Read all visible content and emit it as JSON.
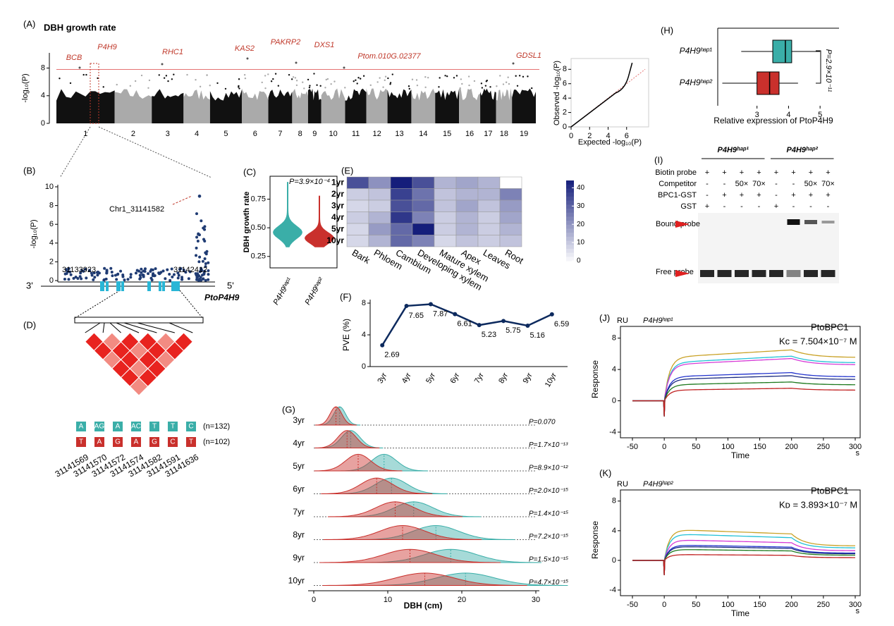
{
  "panel_a": {
    "label": "(A)",
    "title": "DBH  growth rate",
    "y_label": "-log₁₀(P)",
    "ylim": [
      0,
      10.2
    ],
    "yticks": [
      0,
      4,
      8
    ],
    "threshold": 7.8,
    "chromosomes": [
      "1",
      "2",
      "3",
      "4",
      "5",
      "6",
      "7",
      "8",
      "9",
      "10",
      "11",
      "12",
      "13",
      "14",
      "15",
      "16",
      "17",
      "18",
      "19"
    ],
    "genes": [
      "BCB",
      "P4H9",
      "RHC1",
      "KAS2",
      "PAKRP2",
      "DXS1",
      "Ptom.010G.02377",
      "GDSL1"
    ]
  },
  "qq": {
    "type": "qq",
    "x_label": "Expected -log₁₀(P)",
    "y_label": "Observed -log₁₀(P)",
    "xlim": [
      0,
      8
    ],
    "xticks": [
      0,
      2,
      4,
      6
    ],
    "ylim": [
      0,
      9.5
    ],
    "yticks": [
      0,
      2,
      4,
      6,
      8
    ]
  },
  "panel_b": {
    "label": "(B)",
    "y_label": "-log₁₀(P)",
    "ylim": [
      0,
      10
    ],
    "yticks": [
      0,
      2,
      4,
      6,
      8,
      10
    ],
    "snp": "Chr1_31141582",
    "x_start": 31133923,
    "x_end": 31142412,
    "gene": "PtoP4H9",
    "end_left": "3'",
    "end_right": "5'"
  },
  "panel_c": {
    "type": "violin",
    "label": "(C)",
    "y_label": "DBH growth rate",
    "p_value": "P=3.9×10⁻⁴",
    "ylim": [
      0.15,
      0.95
    ],
    "yticks": [
      0.25,
      {
        "value": 0.5,
        "label": "0.50"
      },
      0.75
    ],
    "groups": [
      "P4H9ʰᵃᵖ¹",
      "P4H9ʰᵃᵖ²"
    ],
    "colors": [
      "#3aaea8",
      "#c9302c"
    ]
  },
  "panel_d": {
    "label": "(D)",
    "haplotypes": [
      {
        "alleles": [
          "A",
          "AG",
          "A",
          "AC",
          "T",
          "T",
          "C"
        ],
        "n": "(n=132)",
        "color": "#3aaea8"
      },
      {
        "alleles": [
          "T",
          "A",
          "G",
          "A",
          "G",
          "C",
          "T"
        ],
        "n": "(n=102)",
        "color": "#c9302c"
      }
    ],
    "positions": [
      31141569,
      31141570,
      31141572,
      31141574,
      31141582,
      31141591,
      31141636
    ]
  },
  "panel_e": {
    "type": "heatmap",
    "label": "(E)",
    "rows": [
      "1yr",
      "2yr",
      "3yr",
      "4yr",
      "5yr",
      "10yr"
    ],
    "columns": [
      "Bark",
      "Phloem",
      "Cambium",
      "Developing xylem",
      "Mature xylem",
      "Apex",
      "Leaves",
      "Root"
    ],
    "values": [
      [
        35,
        22,
        45,
        35,
        15,
        18,
        15,
        0
      ],
      [
        10,
        12,
        38,
        28,
        12,
        15,
        15,
        25
      ],
      [
        8,
        10,
        35,
        30,
        12,
        18,
        12,
        20
      ],
      [
        10,
        15,
        40,
        25,
        10,
        15,
        10,
        18
      ],
      [
        8,
        20,
        30,
        45,
        10,
        15,
        10,
        15
      ],
      [
        8,
        15,
        30,
        25,
        8,
        12,
        10,
        12
      ]
    ],
    "color": "#1a237e",
    "colorbar_lim": [
      0,
      44
    ],
    "colorbar_ticks": [
      0,
      10,
      20,
      30,
      40
    ]
  },
  "panel_f": {
    "type": "line",
    "label": "(F)",
    "y_label": "PVE (%)",
    "categories": [
      "3yr",
      "4yr",
      "5yr",
      "6yr",
      "7yr",
      "8yr",
      "9yr",
      "10yr"
    ],
    "values": [
      2.69,
      7.65,
      7.87,
      6.61,
      5.23,
      5.75,
      5.16,
      6.59
    ],
    "color": "#0d2a5e",
    "ylim": [
      0,
      8
    ],
    "yticks": [
      0,
      4,
      8
    ]
  },
  "panel_g": {
    "type": "ridgeline",
    "label": "(G)",
    "x_label": "DBH (cm)",
    "xlim": [
      0,
      30
    ],
    "xticks": [
      0,
      10,
      20,
      30
    ],
    "rows": [
      "3yr",
      "4yr",
      "5yr",
      "6yr",
      "7yr",
      "8yr",
      "9yr",
      "10yr"
    ],
    "p_values": [
      "P=0.070",
      "P=1.7×10⁻¹³",
      "P=8.9×10⁻¹²",
      "P=2.0×10⁻¹⁵",
      "P=1.4×10⁻¹⁵",
      "P=7.2×10⁻¹⁵",
      "P=1.5×10⁻¹⁵",
      "P=4.7×10⁻¹⁵"
    ],
    "peaks_hap1": [
      3.5,
      5,
      9.5,
      10.5,
      13.5,
      16.5,
      18.5,
      20.5
    ],
    "peaks_hap2": [
      3,
      4.5,
      6,
      8.5,
      11,
      12,
      13,
      15
    ],
    "colors": [
      "#3aaea8",
      "#c9302c"
    ]
  },
  "panel_h": {
    "type": "box",
    "label": "(H)",
    "x_label": "Relative expression of PtoP4H9",
    "p_value": "P=2.9×10⁻¹¹",
    "xlim": [
      1.8,
      5.6
    ],
    "xticks": [
      3,
      4,
      5
    ],
    "groups": [
      "P4H9ʰᵃᵖ¹",
      "P4H9ʰᵃᵖ²"
    ],
    "colors": [
      "#3aaea8",
      "#c9302c"
    ],
    "whisker_low": [
      2.5,
      1.9
    ],
    "q1": [
      3.5,
      3.0
    ],
    "median": [
      3.9,
      3.4
    ],
    "q3": [
      4.1,
      3.7
    ],
    "whisker_high": [
      5.0,
      4.3
    ]
  },
  "panel_i": {
    "label": "(I)",
    "groups": [
      "P4H9ʰᵃᵖ¹",
      "P4H9ʰᵃᵖ²"
    ],
    "rows": [
      {
        "label": "Biotin probe",
        "cells": [
          "+",
          "+",
          "+",
          "+",
          "+",
          "+",
          "+",
          "+"
        ]
      },
      {
        "label": "Competitor",
        "cells": [
          "-",
          "-",
          "50×",
          "70×",
          "-",
          "-",
          "50×",
          "70×"
        ]
      },
      {
        "label": "BPC1-GST",
        "cells": [
          "-",
          "+",
          "+",
          "+",
          "-",
          "+",
          "+",
          "+"
        ]
      },
      {
        "label": "GST",
        "cells": [
          "+",
          "-",
          "-",
          "-",
          "+",
          "-",
          "-",
          "-"
        ]
      }
    ],
    "bound": "Bound probe",
    "free": "Free probe"
  },
  "panel_j": {
    "type": "spr",
    "label": "(J)",
    "unit": "RU",
    "group": "P4H9ʰᵃᵖ¹",
    "analyte": "PtoBPC1",
    "constant": "Kᴄ = 7.504×10⁻⁷ M",
    "y_label": "Response",
    "x_label": "Time",
    "x_unit": "s",
    "xlim": [
      -50,
      300
    ],
    "xticks": [
      -50,
      0,
      50,
      100,
      150,
      200,
      250,
      300
    ],
    "ylim": [
      -4,
      9.5
    ],
    "yticks": [
      -4,
      0,
      4,
      8
    ],
    "plateaus": [
      6.5,
      5.7,
      5.4,
      3.6,
      3.2,
      2.4,
      1.6
    ],
    "colors": [
      "#c9a227",
      "#22c1d6",
      "#d63ad6",
      "#2233cc",
      "#1a2a80",
      "#1e7a1e",
      "#c02020"
    ]
  },
  "panel_k": {
    "type": "spr",
    "label": "(K)",
    "unit": "RU",
    "group": "P4H9ʰᵃᵖ²",
    "analyte": "PtoBPC1",
    "constant": "Kᴅ = 3.893×10⁻⁷ M",
    "y_label": "Response",
    "x_label": "Time",
    "x_unit": "s",
    "xlim": [
      -50,
      300
    ],
    "xticks": [
      -50,
      0,
      50,
      100,
      150,
      200,
      250,
      300
    ],
    "ylim": [
      -4,
      9.5
    ],
    "yticks": [
      -4,
      0,
      4,
      8
    ],
    "plateaus": [
      4.2,
      3.6,
      2.8,
      2.1,
      1.9,
      1.5,
      0.8
    ],
    "colors": [
      "#c9a227",
      "#22c1d6",
      "#d63ad6",
      "#2233cc",
      "#1a2a80",
      "#1e7a1e",
      "#c02020"
    ]
  }
}
